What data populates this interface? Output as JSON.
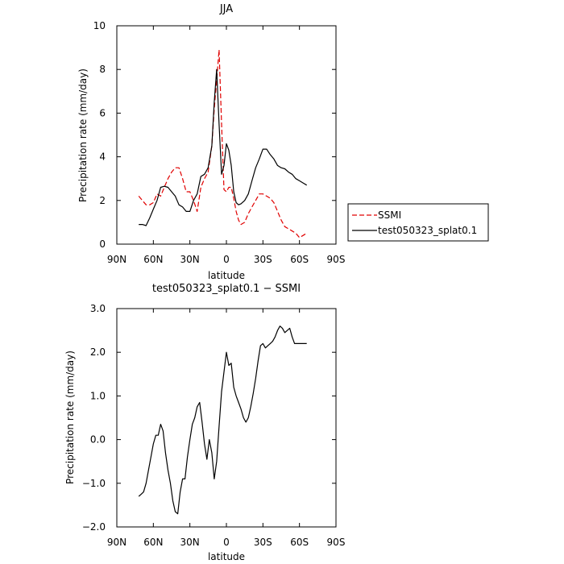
{
  "chart_data": [
    {
      "type": "line",
      "title": "JJA",
      "xlabel": "latitude",
      "ylabel": "Precipitation rate (mm/day)",
      "xlim": [
        90,
        -90
      ],
      "ylim": [
        0,
        10
      ],
      "x_ticks": [
        90,
        60,
        30,
        0,
        -30,
        -60,
        -90
      ],
      "x_tick_labels": [
        "90N",
        "60N",
        "30N",
        "0",
        "30S",
        "60S",
        "90S"
      ],
      "y_ticks": [
        0,
        2,
        4,
        6,
        8,
        10
      ],
      "y_tick_labels": [
        "0",
        "2",
        "4",
        "6",
        "8",
        "10"
      ],
      "legend_position": "right, outside plot",
      "series": [
        {
          "name": "SSMI",
          "color": "#e00000",
          "style": "dashed",
          "x": [
            72,
            69,
            66,
            63,
            60,
            57,
            54,
            51,
            48,
            45,
            42,
            39,
            36,
            33,
            30,
            27,
            24,
            21,
            18,
            15,
            12,
            10,
            8,
            6,
            4,
            2,
            0,
            -2,
            -4,
            -6,
            -8,
            -10,
            -12,
            -15,
            -18,
            -21,
            -24,
            -27,
            -30,
            -33,
            -36,
            -39,
            -42,
            -45,
            -48,
            -51,
            -54,
            -57,
            -60,
            -63,
            -66
          ],
          "y": [
            2.2,
            2.0,
            1.8,
            1.8,
            1.9,
            2.3,
            2.2,
            2.6,
            3.0,
            3.3,
            3.5,
            3.5,
            3.0,
            2.4,
            2.4,
            2.0,
            1.5,
            2.6,
            3.0,
            3.3,
            4.5,
            6.2,
            7.5,
            8.9,
            5.5,
            2.5,
            2.4,
            2.6,
            2.6,
            2.1,
            1.5,
            1.1,
            0.9,
            1.0,
            1.4,
            1.7,
            2.0,
            2.3,
            2.3,
            2.2,
            2.1,
            1.9,
            1.5,
            1.1,
            0.8,
            0.7,
            0.6,
            0.5,
            0.3,
            0.4,
            0.5
          ]
        },
        {
          "name": "test050323_splat0.1",
          "color": "#000000",
          "style": "solid",
          "x": [
            72,
            69,
            66,
            63,
            60,
            57,
            54,
            51,
            48,
            45,
            42,
            39,
            36,
            33,
            30,
            27,
            24,
            21,
            18,
            15,
            12,
            10,
            8,
            6,
            4,
            2,
            0,
            -2,
            -4,
            -6,
            -8,
            -10,
            -12,
            -15,
            -18,
            -21,
            -24,
            -27,
            -30,
            -33,
            -36,
            -39,
            -42,
            -45,
            -48,
            -51,
            -54,
            -57,
            -60,
            -63,
            -66
          ],
          "y": [
            0.9,
            0.9,
            0.85,
            1.2,
            1.6,
            2.0,
            2.6,
            2.65,
            2.6,
            2.4,
            2.2,
            1.8,
            1.7,
            1.5,
            1.5,
            2.0,
            2.3,
            3.1,
            3.2,
            3.5,
            4.5,
            6.5,
            8.0,
            5.5,
            3.2,
            3.6,
            4.6,
            4.3,
            3.6,
            2.4,
            1.9,
            1.8,
            1.85,
            2.0,
            2.3,
            2.9,
            3.5,
            3.9,
            4.35,
            4.35,
            4.1,
            3.9,
            3.6,
            3.5,
            3.45,
            3.3,
            3.2,
            3.0,
            2.9,
            2.8,
            2.7
          ]
        }
      ]
    },
    {
      "type": "line",
      "title": "test050323_splat0.1 − SSMI",
      "xlabel": "latitude",
      "ylabel": "Precipitation rate (mm/day)",
      "xlim": [
        90,
        -90
      ],
      "ylim": [
        -2,
        3
      ],
      "x_ticks": [
        90,
        60,
        30,
        0,
        -30,
        -60,
        -90
      ],
      "x_tick_labels": [
        "90N",
        "60N",
        "30N",
        "0",
        "30S",
        "60S",
        "90S"
      ],
      "y_ticks": [
        -2,
        -1,
        0,
        1,
        2,
        3
      ],
      "y_tick_labels": [
        "−2.0",
        "−1.0",
        "0.0",
        "1.0",
        "2.0",
        "3.0"
      ],
      "series": [
        {
          "color": "#000000",
          "style": "solid",
          "x": [
            72,
            70,
            68,
            66,
            64,
            62,
            60,
            58,
            57,
            56,
            54,
            52,
            50,
            48,
            46,
            44,
            42,
            40,
            38,
            36,
            34,
            32,
            30,
            28,
            26,
            24,
            22,
            20,
            18,
            16,
            14,
            12,
            10,
            8,
            6,
            4,
            2,
            0,
            -2,
            -4,
            -6,
            -8,
            -10,
            -12,
            -14,
            -16,
            -18,
            -20,
            -22,
            -24,
            -26,
            -28,
            -30,
            -32,
            -34,
            -36,
            -38,
            -40,
            -42,
            -44,
            -46,
            -48,
            -50,
            -52,
            -54,
            -56,
            -58,
            -60,
            -62,
            -64,
            -66
          ],
          "y": [
            -1.3,
            -1.25,
            -1.2,
            -1.0,
            -0.7,
            -0.4,
            -0.1,
            0.1,
            0.1,
            0.1,
            0.35,
            0.2,
            -0.3,
            -0.7,
            -1.0,
            -1.4,
            -1.65,
            -1.7,
            -1.2,
            -0.9,
            -0.9,
            -0.4,
            0.0,
            0.35,
            0.5,
            0.75,
            0.85,
            0.4,
            -0.1,
            -0.45,
            0.0,
            -0.3,
            -0.9,
            -0.5,
            0.3,
            1.1,
            1.55,
            2.0,
            1.7,
            1.75,
            1.2,
            1.0,
            0.85,
            0.7,
            0.5,
            0.4,
            0.5,
            0.75,
            1.05,
            1.4,
            1.8,
            2.15,
            2.2,
            2.1,
            2.15,
            2.2,
            2.25,
            2.35,
            2.5,
            2.6,
            2.55,
            2.45,
            2.5,
            2.55,
            2.35,
            2.2,
            2.2,
            2.2,
            2.2,
            2.2,
            2.2
          ]
        }
      ]
    }
  ]
}
